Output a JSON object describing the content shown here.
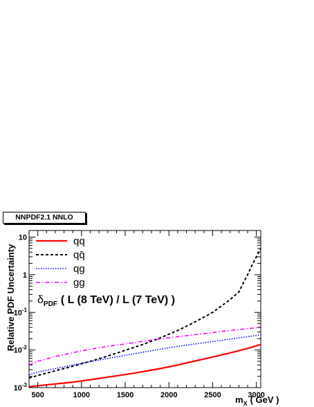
{
  "chart_data": {
    "type": "line",
    "title": "NNPDF2.1 NNLO",
    "xlabel_main": "m",
    "xlabel_sub": "X",
    "xlabel_unit": "( GeV )",
    "ylabel": "Relative PDF Uncertainty",
    "yscale": "log",
    "xlim": [
      400,
      3050
    ],
    "ylim": [
      0.001,
      15
    ],
    "x_ticks": [
      500,
      1000,
      1500,
      2000,
      2500,
      3000
    ],
    "x_tick_labels": [
      "500",
      "1000",
      "1500",
      "2000",
      "2500",
      "3000"
    ],
    "y_ticks": [
      0.001,
      0.01,
      0.1,
      1,
      10
    ],
    "y_tick_labels": [
      {
        "base": "10",
        "exp": "-3"
      },
      {
        "base": "10",
        "exp": "-2"
      },
      {
        "base": "10",
        "exp": "-1"
      },
      {
        "base": "1",
        "exp": ""
      },
      {
        "base": "10",
        "exp": ""
      }
    ],
    "annotation": {
      "delta": "δ",
      "sub": "PDF",
      "text": "( L (8 TeV) / L (7 TeV) )"
    },
    "legend_position": "top-left",
    "series": [
      {
        "name": "qq",
        "color": "#ff0000",
        "style": "solid",
        "x": [
          400,
          500,
          700,
          900,
          1100,
          1300,
          1500,
          1700,
          1900,
          2100,
          2300,
          2500,
          2700,
          2900,
          3050
        ],
        "y": [
          0.00105,
          0.00112,
          0.00125,
          0.0014,
          0.00162,
          0.0019,
          0.00222,
          0.00265,
          0.0032,
          0.004,
          0.0051,
          0.0065,
          0.0084,
          0.011,
          0.014
        ]
      },
      {
        "name": "qq̄",
        "color": "#000000",
        "style": "dashed",
        "x": [
          400,
          500,
          700,
          900,
          1100,
          1300,
          1500,
          1700,
          1900,
          2100,
          2300,
          2500,
          2700,
          2800,
          2850,
          2900,
          2950,
          3000,
          3050
        ],
        "y": [
          0.0018,
          0.0021,
          0.0028,
          0.0037,
          0.005,
          0.0069,
          0.0098,
          0.014,
          0.021,
          0.033,
          0.056,
          0.1,
          0.22,
          0.35,
          0.6,
          1.0,
          1.8,
          3.0,
          5.0
        ]
      },
      {
        "name": "qg",
        "color": "#0000ff",
        "style": "dotted",
        "x": [
          400,
          500,
          700,
          900,
          1100,
          1300,
          1500,
          1700,
          1900,
          2100,
          2300,
          2500,
          2700,
          2900,
          3050
        ],
        "y": [
          0.0022,
          0.0026,
          0.0032,
          0.004,
          0.0049,
          0.006,
          0.0072,
          0.0087,
          0.0105,
          0.0125,
          0.0145,
          0.0168,
          0.0195,
          0.0225,
          0.0255
        ]
      },
      {
        "name": "gg",
        "color": "#ff00ff",
        "style": "dashdot",
        "x": [
          400,
          500,
          700,
          900,
          1100,
          1300,
          1500,
          1700,
          1900,
          2100,
          2300,
          2500,
          2700,
          2900,
          3050
        ],
        "y": [
          0.004,
          0.005,
          0.0067,
          0.0085,
          0.0105,
          0.0125,
          0.0145,
          0.017,
          0.0198,
          0.0225,
          0.0255,
          0.029,
          0.033,
          0.037,
          0.04
        ]
      }
    ]
  }
}
